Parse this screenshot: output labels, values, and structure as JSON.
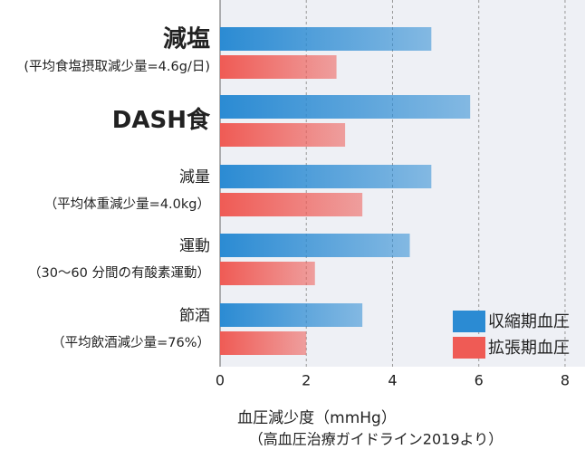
{
  "chart_data": {
    "type": "hbar",
    "categories": [
      "減塩",
      "DASH食",
      "減量",
      "運動",
      "節酒"
    ],
    "category_notes": [
      "(平均食塩摂取減少量=4.6g/日)",
      null,
      "（平均体重減少量=4.0kg）",
      "（30～60 分間の有酸素運動）",
      "（平均飲酒減少量=76%）"
    ],
    "highlight": [
      true,
      true,
      false,
      false,
      false
    ],
    "highlight_color": "#e8323c",
    "series": [
      {
        "name": "収縮期血圧",
        "color": "#2b8bd3",
        "values": [
          4.9,
          5.8,
          4.9,
          4.4,
          3.3
        ]
      },
      {
        "name": "拡張期血圧",
        "color": "#ef5b55",
        "values": [
          2.7,
          2.9,
          3.3,
          2.2,
          2.0
        ]
      }
    ],
    "xlim": [
      0,
      8.4
    ],
    "xticks": [
      0,
      2,
      4,
      6,
      8
    ],
    "xlabel": "血圧減少度（mmHg）",
    "source": "（高血圧治療ガイドライン2019より）",
    "grid": true,
    "legend": "lower right"
  }
}
